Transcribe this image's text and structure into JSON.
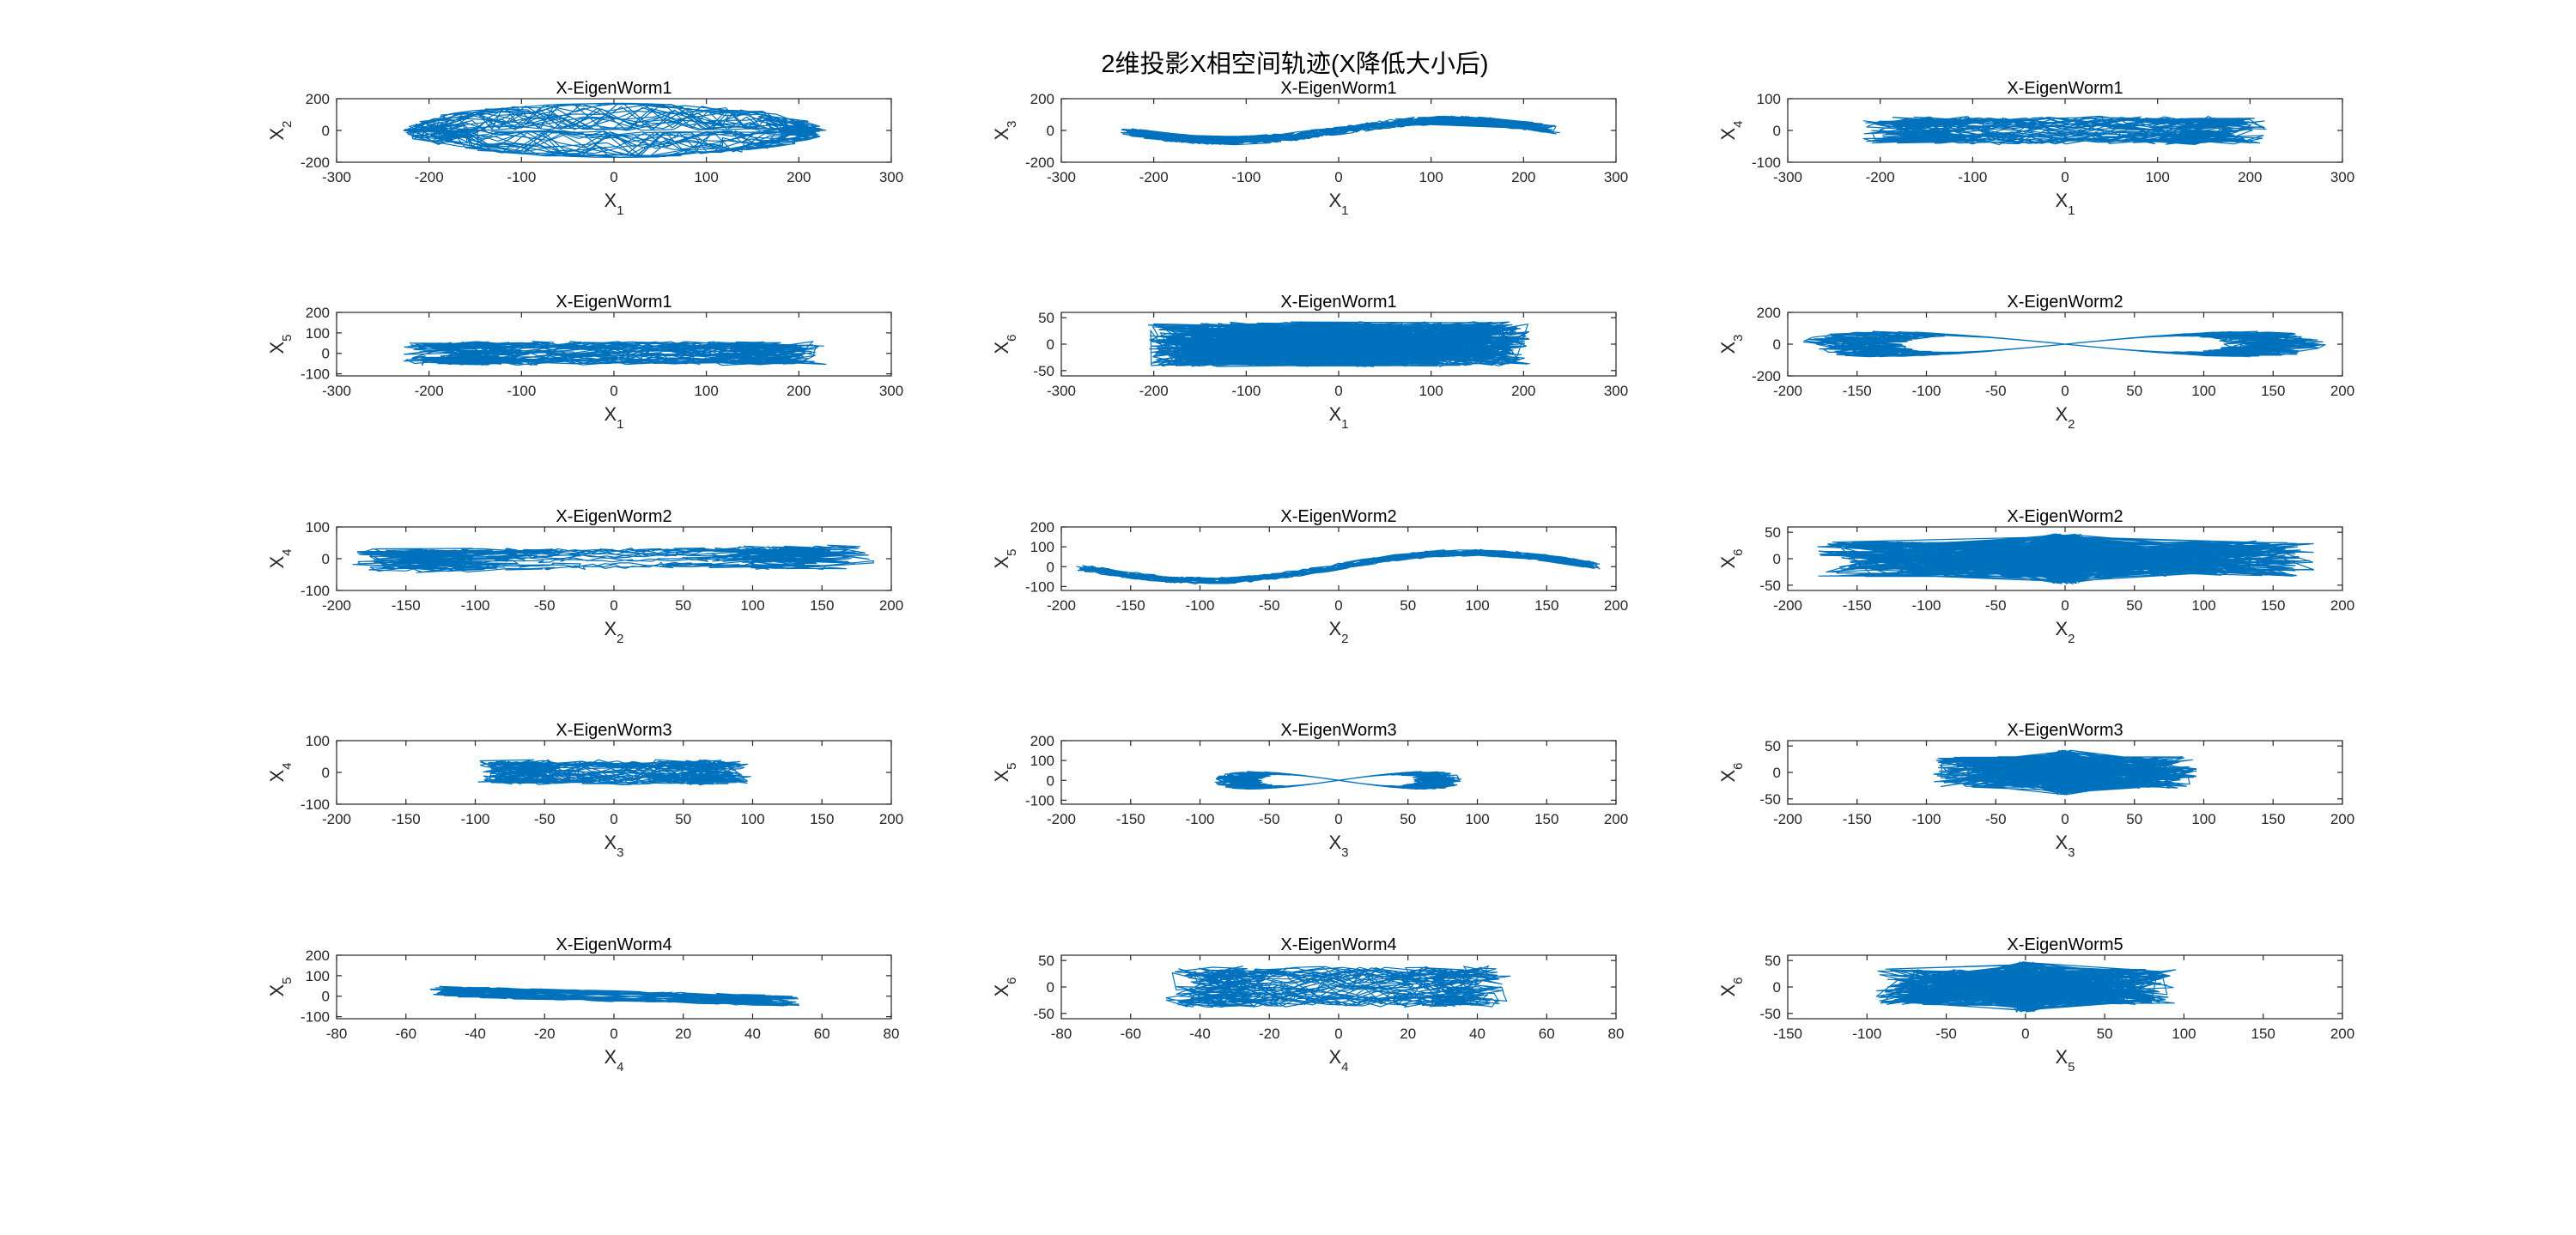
{
  "figure": {
    "title": "2维投影X相空间轨迹(X降低大小后)",
    "line_color": "#0072BD"
  },
  "chart_data": [
    {
      "type": "line",
      "title": "X-EigenWorm1",
      "xlabel": "X",
      "xsub": "1",
      "ylabel": "X",
      "ysub": "2",
      "xlim": [
        -300,
        300
      ],
      "ylim": [
        -200,
        200
      ],
      "xticks": [
        -300,
        -200,
        -100,
        0,
        100,
        200,
        300
      ],
      "yticks": [
        -200,
        0,
        200
      ],
      "pattern": "lens",
      "ax": 230,
      "ay": 180,
      "seed": 1,
      "series": [
        {
          "name": "trajectory"
        }
      ]
    },
    {
      "type": "line",
      "title": "X-EigenWorm1",
      "xlabel": "X",
      "xsub": "1",
      "ylabel": "X",
      "ysub": "3",
      "xlim": [
        -300,
        300
      ],
      "ylim": [
        -200,
        200
      ],
      "xticks": [
        -300,
        -200,
        -100,
        0,
        100,
        200,
        300
      ],
      "yticks": [
        -200,
        0,
        200
      ],
      "pattern": "wave",
      "ax": 240,
      "ay": 70,
      "seed": 2,
      "series": [
        {
          "name": "trajectory"
        }
      ]
    },
    {
      "type": "line",
      "title": "X-EigenWorm1",
      "xlabel": "X",
      "xsub": "1",
      "ylabel": "X",
      "ysub": "4",
      "xlim": [
        -300,
        300
      ],
      "ylim": [
        -100,
        100
      ],
      "xticks": [
        -300,
        -200,
        -100,
        0,
        100,
        200,
        300
      ],
      "yticks": [
        -100,
        0,
        100
      ],
      "pattern": "blob",
      "ax": 220,
      "ay": 45,
      "seed": 3,
      "series": [
        {
          "name": "trajectory"
        }
      ]
    },
    {
      "type": "line",
      "title": "X-EigenWorm1",
      "xlabel": "X",
      "xsub": "1",
      "ylabel": "X",
      "ysub": "5",
      "xlim": [
        -300,
        300
      ],
      "ylim": [
        -110,
        200
      ],
      "xticks": [
        -300,
        -200,
        -100,
        0,
        100,
        200,
        300
      ],
      "yticks": [
        -100,
        0,
        100,
        200
      ],
      "pattern": "blob",
      "ax": 230,
      "ay": 60,
      "seed": 4,
      "series": [
        {
          "name": "trajectory"
        }
      ]
    },
    {
      "type": "line",
      "title": "X-EigenWorm1",
      "xlabel": "X",
      "xsub": "1",
      "ylabel": "X",
      "ysub": "6",
      "xlim": [
        -300,
        300
      ],
      "ylim": [
        -60,
        60
      ],
      "xticks": [
        -300,
        -200,
        -100,
        0,
        100,
        200,
        300
      ],
      "yticks": [
        -50,
        0,
        50
      ],
      "pattern": "zigzag",
      "ax": 230,
      "ay": 50,
      "seed": 5,
      "series": [
        {
          "name": "trajectory"
        }
      ]
    },
    {
      "type": "line",
      "title": "X-EigenWorm2",
      "xlabel": "X",
      "xsub": "2",
      "ylabel": "X",
      "ysub": "3",
      "xlim": [
        -200,
        200
      ],
      "ylim": [
        -200,
        200
      ],
      "xticks": [
        -200,
        -150,
        -100,
        -50,
        0,
        50,
        100,
        150,
        200
      ],
      "yticks": [
        -200,
        0,
        200
      ],
      "pattern": "eight",
      "ax": 190,
      "ay": 90,
      "seed": 6,
      "series": [
        {
          "name": "trajectory"
        }
      ]
    },
    {
      "type": "line",
      "title": "X-EigenWorm2",
      "xlabel": "X",
      "xsub": "2",
      "ylabel": "X",
      "ysub": "4",
      "xlim": [
        -200,
        200
      ],
      "ylim": [
        -100,
        100
      ],
      "xticks": [
        -200,
        -150,
        -100,
        -50,
        0,
        50,
        100,
        150,
        200
      ],
      "yticks": [
        -100,
        0,
        100
      ],
      "pattern": "stripes",
      "ax": 190,
      "ay": 30,
      "seed": 7,
      "series": [
        {
          "name": "trajectory"
        }
      ]
    },
    {
      "type": "line",
      "title": "X-EigenWorm2",
      "xlabel": "X",
      "xsub": "2",
      "ylabel": "X",
      "ysub": "5",
      "xlim": [
        -200,
        200
      ],
      "ylim": [
        -120,
        200
      ],
      "xticks": [
        -200,
        -150,
        -100,
        -50,
        0,
        50,
        100,
        150,
        200
      ],
      "yticks": [
        -100,
        0,
        100,
        200
      ],
      "pattern": "sine",
      "ax": 190,
      "ay": 70,
      "seed": 8,
      "series": [
        {
          "name": "trajectory"
        }
      ]
    },
    {
      "type": "line",
      "title": "X-EigenWorm2",
      "xlabel": "X",
      "xsub": "2",
      "ylabel": "X",
      "ysub": "6",
      "xlim": [
        -200,
        200
      ],
      "ylim": [
        -60,
        60
      ],
      "xticks": [
        -200,
        -150,
        -100,
        -50,
        0,
        50,
        100,
        150,
        200
      ],
      "yticks": [
        -50,
        0,
        50
      ],
      "pattern": "spike",
      "ax": 190,
      "ay": 45,
      "seed": 9,
      "series": [
        {
          "name": "trajectory"
        }
      ]
    },
    {
      "type": "line",
      "title": "X-EigenWorm3",
      "xlabel": "X",
      "xsub": "3",
      "ylabel": "X",
      "ysub": "4",
      "xlim": [
        -200,
        200
      ],
      "ylim": [
        -100,
        100
      ],
      "xticks": [
        -200,
        -150,
        -100,
        -50,
        0,
        50,
        100,
        150,
        200
      ],
      "yticks": [
        -100,
        0,
        100
      ],
      "pattern": "blob",
      "ax": 100,
      "ay": 40,
      "seed": 10,
      "series": [
        {
          "name": "trajectory"
        }
      ]
    },
    {
      "type": "line",
      "title": "X-EigenWorm3",
      "xlabel": "X",
      "xsub": "3",
      "ylabel": "X",
      "ysub": "5",
      "xlim": [
        -200,
        200
      ],
      "ylim": [
        -120,
        200
      ],
      "xticks": [
        -200,
        -150,
        -100,
        -50,
        0,
        50,
        100,
        150,
        200
      ],
      "yticks": [
        -100,
        0,
        100,
        200
      ],
      "pattern": "eight",
      "ax": 90,
      "ay": 50,
      "seed": 11,
      "series": [
        {
          "name": "trajectory"
        }
      ]
    },
    {
      "type": "line",
      "title": "X-EigenWorm3",
      "xlabel": "X",
      "xsub": "3",
      "ylabel": "X",
      "ysub": "6",
      "xlim": [
        -200,
        200
      ],
      "ylim": [
        -60,
        60
      ],
      "xticks": [
        -200,
        -150,
        -100,
        -50,
        0,
        50,
        100,
        150,
        200
      ],
      "yticks": [
        -50,
        0,
        50
      ],
      "pattern": "spike",
      "ax": 100,
      "ay": 40,
      "seed": 12,
      "series": [
        {
          "name": "trajectory"
        }
      ]
    },
    {
      "type": "line",
      "title": "X-EigenWorm4",
      "xlabel": "X",
      "xsub": "4",
      "ylabel": "X",
      "ysub": "5",
      "xlim": [
        -80,
        80
      ],
      "ylim": [
        -110,
        200
      ],
      "xticks": [
        -80,
        -60,
        -40,
        -20,
        0,
        20,
        40,
        60,
        80
      ],
      "yticks": [
        -100,
        0,
        100,
        200
      ],
      "pattern": "diag",
      "ax": 60,
      "ay": 60,
      "seed": 13,
      "series": [
        {
          "name": "trajectory"
        }
      ]
    },
    {
      "type": "line",
      "title": "X-EigenWorm4",
      "xlabel": "X",
      "xsub": "4",
      "ylabel": "X",
      "ysub": "6",
      "xlim": [
        -80,
        80
      ],
      "ylim": [
        -60,
        60
      ],
      "xticks": [
        -80,
        -60,
        -40,
        -20,
        0,
        20,
        40,
        60,
        80
      ],
      "yticks": [
        -50,
        0,
        50
      ],
      "pattern": "blob",
      "ax": 50,
      "ay": 40,
      "seed": 14,
      "series": [
        {
          "name": "trajectory"
        }
      ]
    },
    {
      "type": "line",
      "title": "X-EigenWorm5",
      "xlabel": "X",
      "xsub": "5",
      "ylabel": "X",
      "ysub": "6",
      "xlim": [
        -150,
        200
      ],
      "ylim": [
        -60,
        60
      ],
      "xticks": [
        -150,
        -100,
        -50,
        0,
        50,
        100,
        150,
        200
      ],
      "yticks": [
        -50,
        0,
        50
      ],
      "pattern": "spike",
      "ax": 100,
      "ay": 45,
      "seed": 15,
      "series": [
        {
          "name": "trajectory"
        }
      ]
    }
  ]
}
